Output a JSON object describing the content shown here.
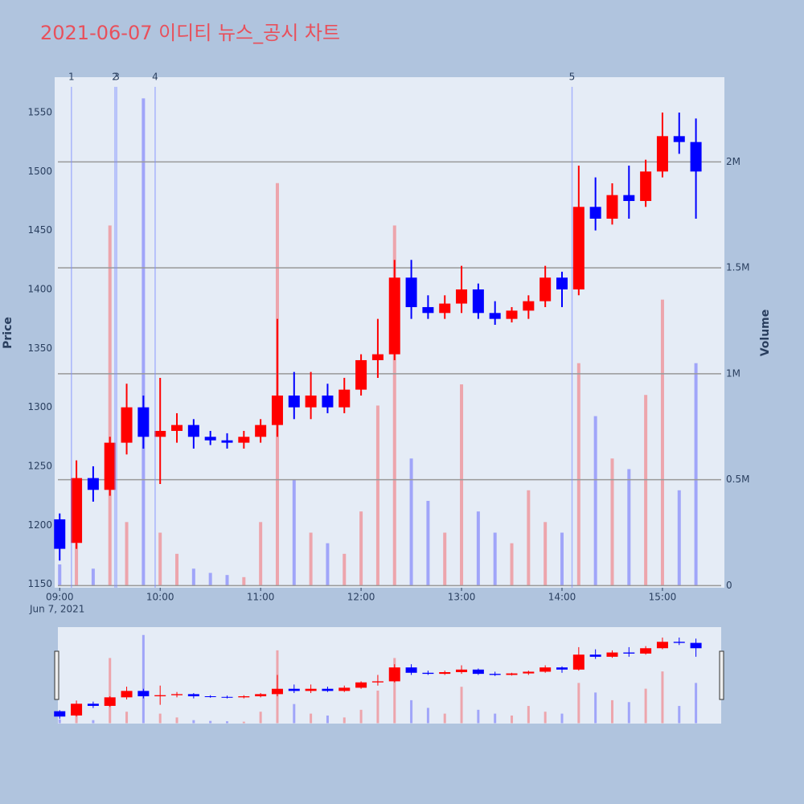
{
  "chart_data": {
    "type": "candlestick",
    "title": "2021-06-07 이디티 뉴스_공시 차트",
    "date_label": "Jun 7, 2021",
    "y_label": "Price",
    "y2_label": "Volume",
    "increasing_color": "#ff0000",
    "decreasing_color": "#0000ff",
    "x": [
      "2021-06-07 09:00",
      "2021-06-07 09:10",
      "2021-06-07 09:20",
      "2021-06-07 09:30",
      "2021-06-07 09:40",
      "2021-06-07 09:50",
      "2021-06-07 10:00",
      "2021-06-07 10:10",
      "2021-06-07 10:20",
      "2021-06-07 10:30",
      "2021-06-07 10:40",
      "2021-06-07 10:50",
      "2021-06-07 11:00",
      "2021-06-07 11:10",
      "2021-06-07 11:20",
      "2021-06-07 11:30",
      "2021-06-07 11:40",
      "2021-06-07 11:50",
      "2021-06-07 12:00",
      "2021-06-07 12:10",
      "2021-06-07 12:20",
      "2021-06-07 12:30",
      "2021-06-07 12:40",
      "2021-06-07 12:50",
      "2021-06-07 13:00",
      "2021-06-07 13:10",
      "2021-06-07 13:20",
      "2021-06-07 13:30",
      "2021-06-07 13:40",
      "2021-06-07 13:50",
      "2021-06-07 14:00",
      "2021-06-07 14:10",
      "2021-06-07 14:20",
      "2021-06-07 14:30",
      "2021-06-07 14:40",
      "2021-06-07 14:50",
      "2021-06-07 15:00",
      "2021-06-07 15:10",
      "2021-06-07 15:20"
    ],
    "open": [
      1205,
      1185,
      1240,
      1230,
      1270,
      1300,
      1275,
      1280,
      1285,
      1275,
      1272,
      1270,
      1275,
      1285,
      1310,
      1300,
      1310,
      1300,
      1315,
      1340,
      1345,
      1410,
      1385,
      1380,
      1388,
      1400,
      1380,
      1375,
      1382,
      1390,
      1410,
      1400,
      1470,
      1460,
      1480,
      1475,
      1500,
      1530,
      1525
    ],
    "high": [
      1210,
      1255,
      1250,
      1275,
      1320,
      1310,
      1325,
      1295,
      1290,
      1280,
      1278,
      1280,
      1290,
      1375,
      1330,
      1330,
      1320,
      1325,
      1345,
      1375,
      1425,
      1425,
      1395,
      1395,
      1420,
      1405,
      1390,
      1385,
      1395,
      1420,
      1415,
      1505,
      1495,
      1490,
      1505,
      1510,
      1550,
      1550,
      1545
    ],
    "low": [
      1170,
      1180,
      1220,
      1225,
      1260,
      1265,
      1235,
      1270,
      1265,
      1268,
      1265,
      1265,
      1270,
      1275,
      1290,
      1290,
      1295,
      1295,
      1310,
      1325,
      1340,
      1375,
      1375,
      1375,
      1380,
      1375,
      1370,
      1372,
      1375,
      1385,
      1385,
      1395,
      1450,
      1455,
      1460,
      1470,
      1495,
      1515,
      1460
    ],
    "close": [
      1180,
      1240,
      1230,
      1270,
      1300,
      1275,
      1280,
      1285,
      1275,
      1272,
      1270,
      1275,
      1285,
      1310,
      1300,
      1310,
      1300,
      1315,
      1340,
      1345,
      1410,
      1385,
      1380,
      1388,
      1400,
      1380,
      1375,
      1382,
      1390,
      1410,
      1400,
      1470,
      1460,
      1480,
      1475,
      1500,
      1530,
      1525,
      1500
    ],
    "volume": [
      100000,
      200000,
      80000,
      1700000,
      300000,
      2300000,
      250000,
      150000,
      80000,
      60000,
      50000,
      40000,
      300000,
      1900000,
      500000,
      250000,
      200000,
      150000,
      350000,
      850000,
      1700000,
      600000,
      400000,
      250000,
      950000,
      350000,
      250000,
      200000,
      450000,
      300000,
      250000,
      1050000,
      800000,
      600000,
      550000,
      900000,
      1350000,
      450000,
      1050000
    ],
    "xlim": [
      "2021-06-07 08:57",
      "2021-06-07 15:37"
    ],
    "xticks": [
      {
        "value": "2021-06-07 09:00",
        "label": "09:00"
      },
      {
        "value": "2021-06-07 10:00",
        "label": "10:00"
      },
      {
        "value": "2021-06-07 11:00",
        "label": "11:00"
      },
      {
        "value": "2021-06-07 12:00",
        "label": "12:00"
      },
      {
        "value": "2021-06-07 13:00",
        "label": "13:00"
      },
      {
        "value": "2021-06-07 14:00",
        "label": "14:00"
      },
      {
        "value": "2021-06-07 15:00",
        "label": "15:00"
      }
    ],
    "ylim": [
      1147,
      1580
    ],
    "yticks": [
      1150,
      1200,
      1250,
      1300,
      1350,
      1400,
      1450,
      1500,
      1550
    ],
    "y2lim": [
      -10000,
      2400000
    ],
    "y2ticks": [
      0,
      {
        "value": 500000,
        "label": "0.5M"
      },
      {
        "value": 1000000,
        "label": "1M"
      },
      {
        "value": 1500000,
        "label": "1.5M"
      },
      {
        "value": 2000000,
        "label": "2M"
      }
    ],
    "annotations": [
      {
        "label": "1",
        "x": "2021-06-07 09:07"
      },
      {
        "label": "2",
        "x": "2021-06-07 09:33"
      },
      {
        "label": "3",
        "x": "2021-06-07 09:34"
      },
      {
        "label": "4",
        "x": "2021-06-07 09:57"
      },
      {
        "label": "5",
        "x": "2021-06-07 14:06"
      }
    ]
  }
}
